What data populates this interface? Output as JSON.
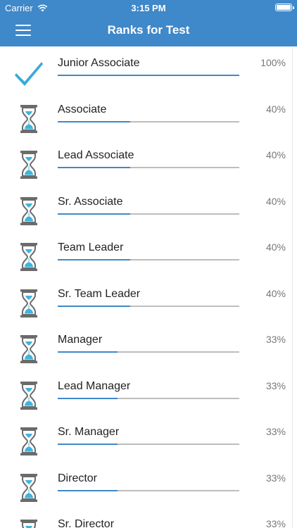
{
  "status_bar": {
    "carrier": "Carrier",
    "time": "3:15 PM"
  },
  "nav": {
    "title": "Ranks for Test",
    "menu_icon": "hamburger-menu-icon"
  },
  "colors": {
    "accent": "#3f88c9",
    "check": "#3aa9d8",
    "hourglass_frame": "#6b6b6b",
    "sand": "#40b4dd",
    "track": "#bdbdbd"
  },
  "ranks": [
    {
      "label": "Junior Associate",
      "percent": "100%",
      "progress": 1.0,
      "status": "completed",
      "icon": "checkmark-icon"
    },
    {
      "label": "Associate",
      "percent": "40%",
      "progress": 0.4,
      "status": "pending",
      "icon": "hourglass-icon"
    },
    {
      "label": "Lead Associate",
      "percent": "40%",
      "progress": 0.4,
      "status": "pending",
      "icon": "hourglass-icon"
    },
    {
      "label": "Sr. Associate",
      "percent": "40%",
      "progress": 0.4,
      "status": "pending",
      "icon": "hourglass-icon"
    },
    {
      "label": "Team Leader",
      "percent": "40%",
      "progress": 0.4,
      "status": "pending",
      "icon": "hourglass-icon"
    },
    {
      "label": "Sr. Team Leader",
      "percent": "40%",
      "progress": 0.4,
      "status": "pending",
      "icon": "hourglass-icon"
    },
    {
      "label": "Manager",
      "percent": "33%",
      "progress": 0.33,
      "status": "pending",
      "icon": "hourglass-icon"
    },
    {
      "label": "Lead Manager",
      "percent": "33%",
      "progress": 0.33,
      "status": "pending",
      "icon": "hourglass-icon"
    },
    {
      "label": "Sr. Manager",
      "percent": "33%",
      "progress": 0.33,
      "status": "pending",
      "icon": "hourglass-icon"
    },
    {
      "label": "Director",
      "percent": "33%",
      "progress": 0.33,
      "status": "pending",
      "icon": "hourglass-icon"
    },
    {
      "label": "Sr. Director",
      "percent": "33%",
      "progress": 0.33,
      "status": "pending",
      "icon": "hourglass-icon"
    }
  ]
}
